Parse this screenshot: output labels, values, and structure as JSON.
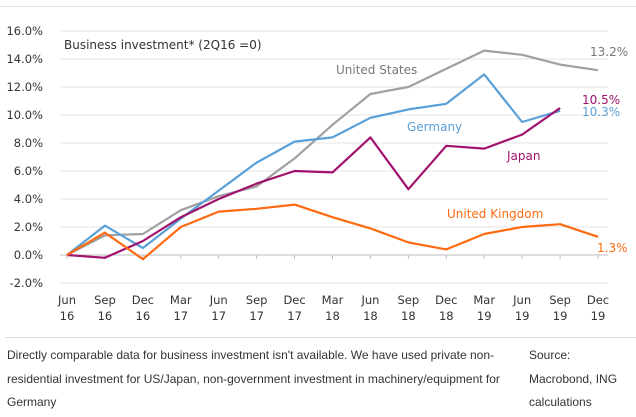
{
  "chart_data": {
    "type": "line",
    "title": "Business investment* (2Q16 =0)",
    "xlabel": "",
    "ylabel": "",
    "x": [
      "Jun 16",
      "Sep 16",
      "Dec 16",
      "Mar 17",
      "Jun 17",
      "Sep 17",
      "Dec 17",
      "Mar 18",
      "Jun 18",
      "Sep 18",
      "Dec 18",
      "Mar 19",
      "Jun 19",
      "Sep 19",
      "Dec 19"
    ],
    "x_ticks": [
      {
        "line1": "Jun",
        "line2": "16"
      },
      {
        "line1": "Sep",
        "line2": "16"
      },
      {
        "line1": "Dec",
        "line2": "16"
      },
      {
        "line1": "Mar",
        "line2": "17"
      },
      {
        "line1": "Jun",
        "line2": "17"
      },
      {
        "line1": "Sep",
        "line2": "17"
      },
      {
        "line1": "Dec",
        "line2": "17"
      },
      {
        "line1": "Mar",
        "line2": "18"
      },
      {
        "line1": "Jun",
        "line2": "18"
      },
      {
        "line1": "Sep",
        "line2": "18"
      },
      {
        "line1": "Dec",
        "line2": "18"
      },
      {
        "line1": "Mar",
        "line2": "19"
      },
      {
        "line1": "Jun",
        "line2": "19"
      },
      {
        "line1": "Sep",
        "line2": "19"
      },
      {
        "line1": "Dec",
        "line2": "19"
      }
    ],
    "y_ticks": [
      "16.0%",
      "14.0%",
      "12.0%",
      "10.0%",
      "8.0%",
      "6.0%",
      "4.0%",
      "2.0%",
      "0.0%",
      "-2.0%"
    ],
    "y_tick_values": [
      16,
      14,
      12,
      10,
      8,
      6,
      4,
      2,
      0,
      -2
    ],
    "ylim": [
      -2,
      16
    ],
    "grid": true,
    "legend": "inline labels",
    "series": [
      {
        "name": "United States",
        "color": "#a0a0a0",
        "values": [
          0,
          1.4,
          1.5,
          3.2,
          4.2,
          4.9,
          6.9,
          9.3,
          11.5,
          12.0,
          13.3,
          14.6,
          14.3,
          13.6,
          13.2
        ],
        "end_label": "13.2%",
        "end_index": 14
      },
      {
        "name": "Germany",
        "color": "#5aa0d8",
        "values": [
          0,
          2.1,
          0.5,
          2.6,
          4.6,
          6.6,
          8.1,
          8.4,
          9.8,
          10.4,
          10.8,
          12.9,
          9.5,
          10.3,
          null
        ],
        "end_label": "10.3%",
        "end_index": 13
      },
      {
        "name": "Japan",
        "color": "#a0126e",
        "values": [
          0,
          -0.2,
          1.0,
          2.7,
          4.0,
          5.1,
          6.0,
          5.9,
          8.4,
          4.7,
          7.8,
          7.6,
          8.6,
          10.5,
          null
        ],
        "end_label": "10.5%",
        "end_index": 13
      },
      {
        "name": "United Kingdom",
        "color": "#ff6a10",
        "values": [
          0,
          1.6,
          -0.3,
          2.0,
          3.1,
          3.3,
          3.6,
          2.7,
          1.9,
          0.9,
          0.4,
          1.5,
          2.0,
          2.2,
          1.3
        ],
        "end_label": "1.3%",
        "end_index": 14
      }
    ]
  },
  "footer": {
    "note": "Directly comparable data for business investment isn't available. We have used private non-residential investment for US/Japan, non-government investment in machinery/equipment for Germany",
    "source": "Source: Macrobond, ING calculations"
  }
}
